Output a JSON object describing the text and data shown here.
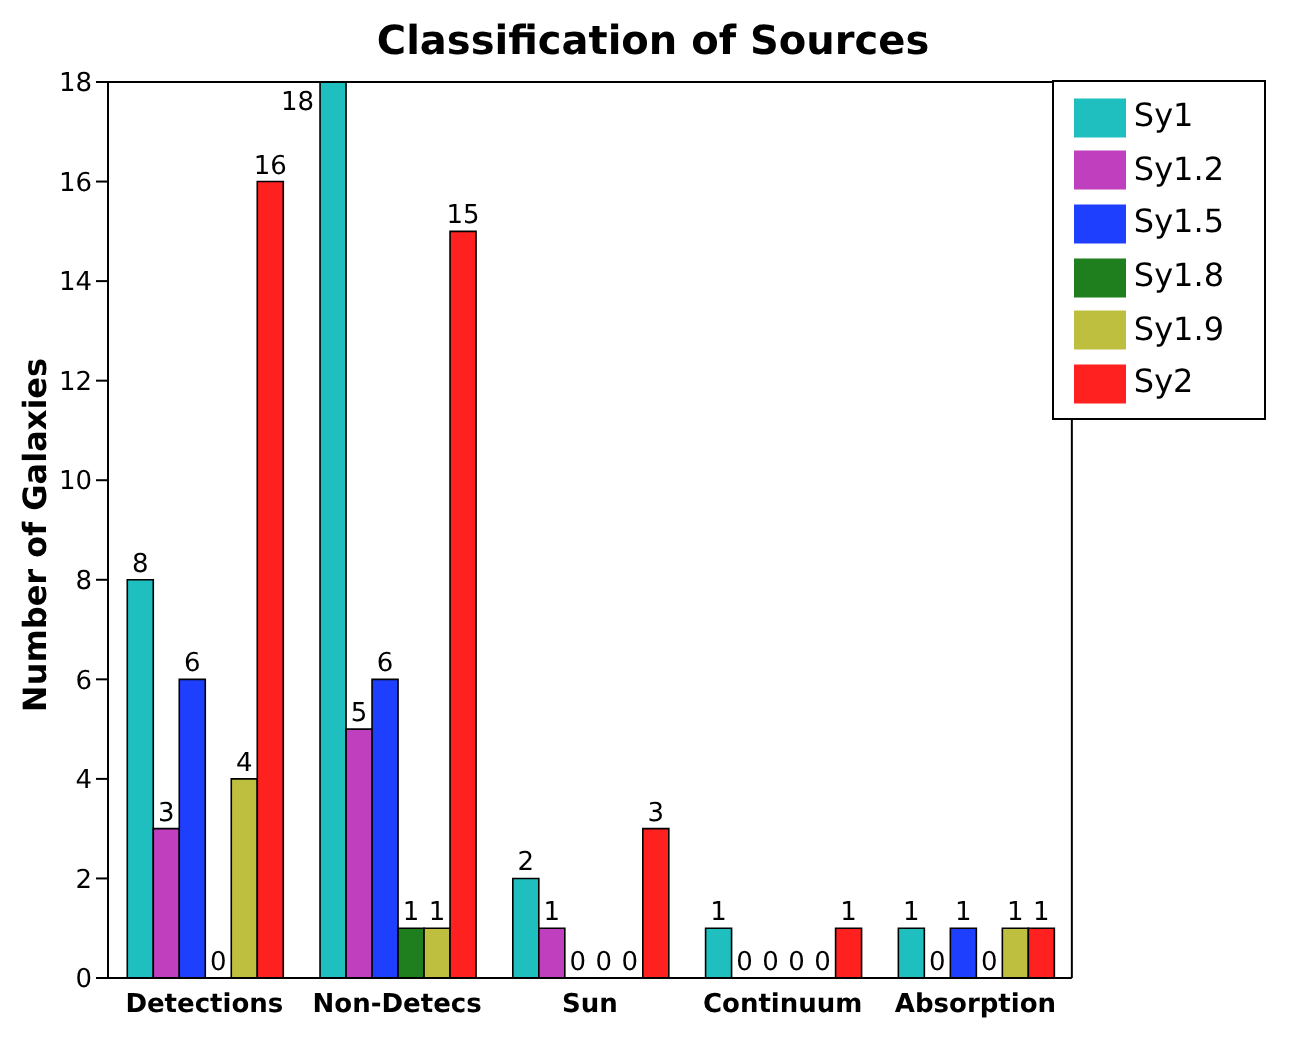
{
  "chart_data": {
    "type": "bar",
    "title": "Classification of Sources",
    "ylabel": "Number of Galaxies",
    "categories": [
      "Detections",
      "Non-Detecs",
      "Sun",
      "Continuum",
      "Absorption"
    ],
    "series": [
      {
        "name": "Sy1",
        "color": "#1fbfbf",
        "values": [
          8,
          18,
          2,
          1,
          1
        ]
      },
      {
        "name": "Sy1.2",
        "color": "#bf3fbf",
        "values": [
          3,
          5,
          1,
          0,
          0
        ]
      },
      {
        "name": "Sy1.5",
        "color": "#1f3fff",
        "values": [
          6,
          6,
          0,
          0,
          1
        ]
      },
      {
        "name": "Sy1.8",
        "color": "#1f7f1f",
        "values": [
          0,
          1,
          0,
          0,
          0
        ]
      },
      {
        "name": "Sy1.9",
        "color": "#bfbf3f",
        "values": [
          4,
          1,
          0,
          0,
          1
        ]
      },
      {
        "name": "Sy2",
        "color": "#ff2020",
        "values": [
          16,
          15,
          3,
          1,
          1
        ]
      }
    ],
    "ylim": [
      0,
      18
    ],
    "yticks": [
      0,
      2,
      4,
      6,
      8,
      10,
      12,
      14,
      16,
      18
    ],
    "grid": false,
    "legend": "top right",
    "data_labels": true
  }
}
